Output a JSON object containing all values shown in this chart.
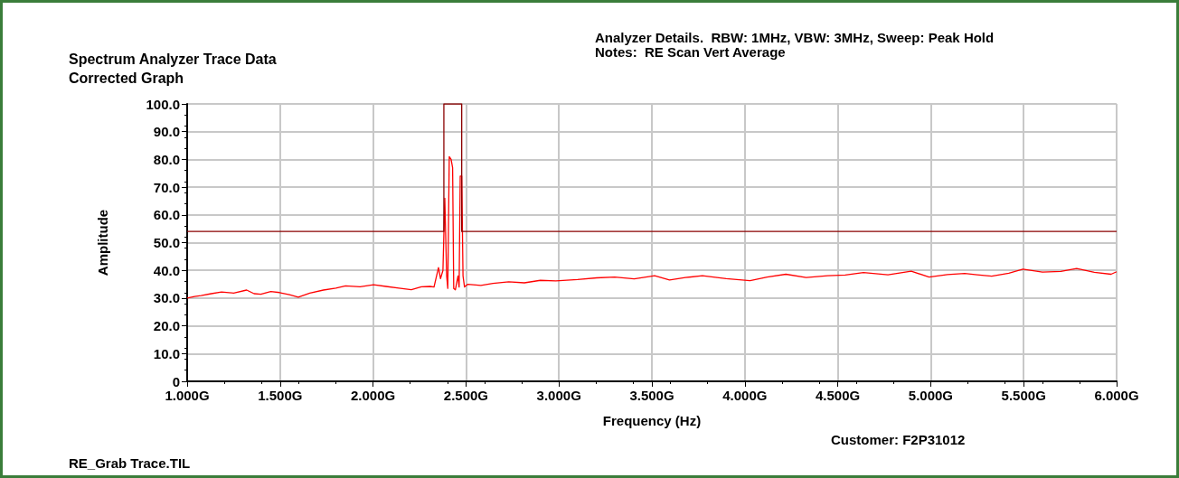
{
  "chart_data": {
    "type": "line",
    "title": "Spectrum Analyzer Trace Data",
    "subtitle": "Corrected Graph",
    "xlabel": "Frequency (Hz)",
    "ylabel": "Amplitude",
    "annotations": [
      "Analyzer Details.  RBW: 1MHz, VBW: 3MHz, Sweep: Peak Hold",
      "Notes:  RE Scan Vert Average",
      "RE_Grab Trace.TIL",
      "Customer: F2P31012"
    ],
    "xlim": [
      1,
      6
    ],
    "ylim": [
      0,
      100
    ],
    "xticks": [
      {
        "value": 1,
        "label": "1.000G"
      },
      {
        "value": 1.5,
        "label": "1.500G"
      },
      {
        "value": 2,
        "label": "2.000G"
      },
      {
        "value": 2.5,
        "label": "2.500G"
      },
      {
        "value": 3,
        "label": "3.000G"
      },
      {
        "value": 3.5,
        "label": "3.500G"
      },
      {
        "value": 4,
        "label": "4.000G"
      },
      {
        "value": 4.5,
        "label": "4.500G"
      },
      {
        "value": 5,
        "label": "5.000G"
      },
      {
        "value": 5.5,
        "label": "5.500G"
      },
      {
        "value": 6,
        "label": "6.000G"
      }
    ],
    "yticks": [
      0,
      {
        "value": 10,
        "label": "10.0"
      },
      {
        "value": 20,
        "label": "20.0"
      },
      {
        "value": 30,
        "label": "30.0"
      },
      {
        "value": 40,
        "label": "40.0"
      },
      {
        "value": 50,
        "label": "50.0"
      },
      {
        "value": 60,
        "label": "60.0"
      },
      {
        "value": 70,
        "label": "70.0"
      },
      {
        "value": 80,
        "label": "80.0"
      },
      {
        "value": 90,
        "label": "90.0"
      },
      {
        "value": 100,
        "label": "100.0"
      }
    ],
    "grid": true,
    "marker": "none",
    "line_style": "solid",
    "series": [
      {
        "color": "#ff0000",
        "x": [
          1,
          1.04,
          1.075,
          1.13,
          1.185,
          1.25,
          1.32,
          1.36,
          1.396,
          1.45,
          1.497,
          1.55,
          1.598,
          1.66,
          1.733,
          1.8,
          1.852,
          1.93,
          2.003,
          2.07,
          2.139,
          2.206,
          2.26,
          2.307,
          2.328,
          2.352,
          2.363,
          2.376,
          2.386,
          2.396,
          2.402,
          2.41,
          2.42,
          2.428,
          2.434,
          2.443,
          2.457,
          2.463,
          2.469,
          2.477,
          2.484,
          2.492,
          2.51,
          2.58,
          2.645,
          2.73,
          2.814,
          2.9,
          2.983,
          3.1,
          3.203,
          3.3,
          3.405,
          3.515,
          3.595,
          3.68,
          3.772,
          3.9,
          4.028,
          4.12,
          4.221,
          4.33,
          4.446,
          4.54,
          4.638,
          4.77,
          4.895,
          4.991,
          5.09,
          5.183,
          5.25,
          5.328,
          5.42,
          5.496,
          5.601,
          5.7,
          5.785,
          5.88,
          5.97,
          6
        ],
        "values": [
          30,
          30.6,
          30.9,
          31.6,
          32.2,
          31.8,
          32.9,
          31.6,
          31.4,
          32.4,
          32,
          31.2,
          30.3,
          31.8,
          32.9,
          33.6,
          34.4,
          34.1,
          34.8,
          34.2,
          33.6,
          33,
          34.1,
          34.2,
          34,
          41,
          37,
          40,
          66,
          38,
          33.5,
          81,
          80,
          77,
          33.5,
          33,
          38,
          34,
          74,
          74,
          38,
          34,
          35,
          34.6,
          35.3,
          35.9,
          35.5,
          36.4,
          36.2,
          36.7,
          37.3,
          37.6,
          36.9,
          38.1,
          36.5,
          37.4,
          38.1,
          37,
          36.3,
          37.6,
          38.6,
          37.4,
          38.1,
          38.3,
          39.2,
          38.4,
          39.7,
          37.6,
          38.5,
          38.9,
          38.4,
          37.9,
          39,
          40.4,
          39.4,
          39.6,
          40.7,
          39.3,
          38.6,
          39.5
        ]
      },
      {
        "color": "#8b0000",
        "x": [
          1,
          2.381,
          2.381,
          2.477,
          2.477,
          6
        ],
        "values": [
          54,
          54,
          100,
          100,
          54,
          54
        ]
      }
    ]
  }
}
